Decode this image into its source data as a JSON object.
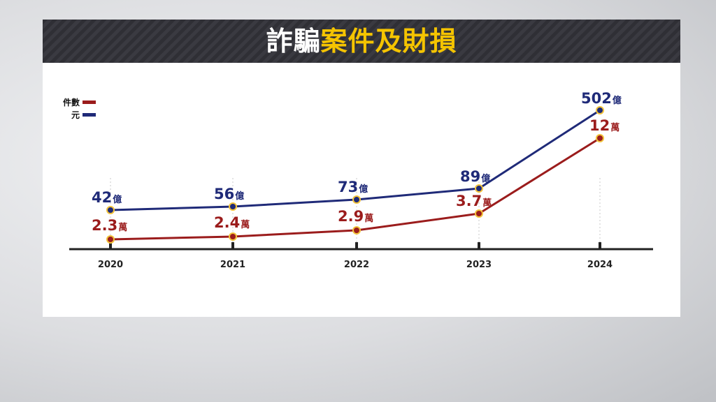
{
  "title": {
    "part1": "詐騙",
    "part2": "案件及財損"
  },
  "legend": [
    {
      "label": "件數",
      "color": "#9b1c1c"
    },
    {
      "label": "元",
      "color": "#1f2a78"
    }
  ],
  "chart_data": {
    "type": "line",
    "title": "詐騙案件及財損",
    "categories": [
      "2020",
      "2021",
      "2022",
      "2023",
      "2024"
    ],
    "series": [
      {
        "name": "元",
        "values": [
          42,
          56,
          73,
          89,
          502
        ],
        "unit": "億",
        "labels": [
          "42",
          "56",
          "73",
          "89",
          "502"
        ],
        "color": "#1f2a78"
      },
      {
        "name": "件數",
        "values": [
          2.3,
          2.4,
          2.9,
          3.7,
          12
        ],
        "unit": "萬",
        "labels": [
          "2.3",
          "2.4",
          "2.9",
          "3.7",
          "12"
        ],
        "color": "#9b1c1c"
      }
    ],
    "xlabel": "",
    "ylabel": "",
    "grid": false,
    "legend_position": "top-left"
  }
}
